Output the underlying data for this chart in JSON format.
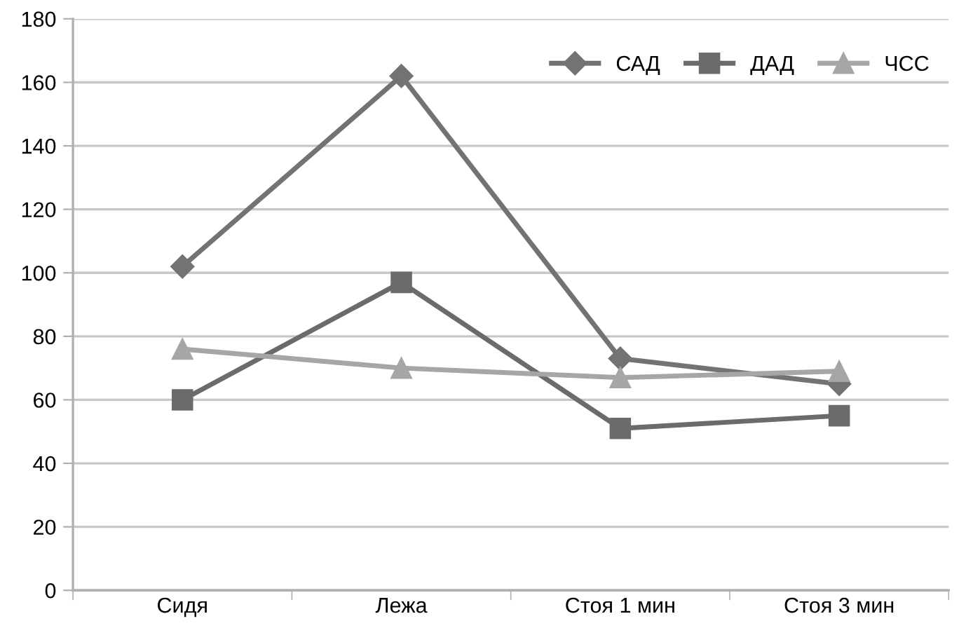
{
  "chart_data": {
    "type": "line",
    "categories": [
      "Сидя",
      "Лежа",
      "Стоя 1 мин",
      "Стоя 3 мин"
    ],
    "series": [
      {
        "name": "САД",
        "color": "#737373",
        "marker": "diamond",
        "values": [
          102,
          162,
          73,
          65
        ]
      },
      {
        "name": "ДАД",
        "color": "#6b6b6b",
        "marker": "square",
        "values": [
          60,
          97,
          51,
          55
        ]
      },
      {
        "name": "ЧСС",
        "color": "#a6a6a6",
        "marker": "triangle",
        "values": [
          76,
          70,
          67,
          69
        ]
      }
    ],
    "ylim": [
      0,
      180
    ],
    "yticks": [
      0,
      20,
      40,
      60,
      80,
      100,
      120,
      140,
      160,
      180
    ],
    "grid": "y",
    "legend": "top right",
    "line_style": "solid"
  }
}
